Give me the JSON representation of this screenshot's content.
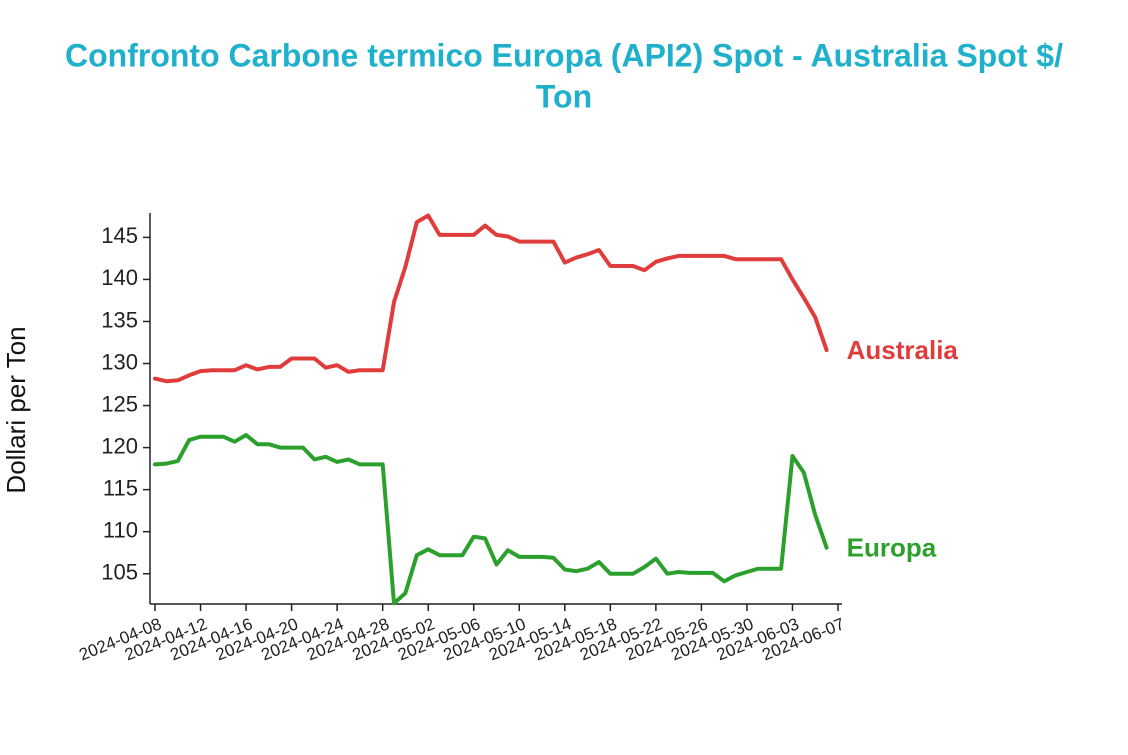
{
  "chart_data": {
    "type": "line",
    "title": "Confronto Carbone termico Europa (API2) Spot - Australia Spot $/ Ton",
    "title_lines": [
      "Confronto Carbone termico Europa (API2) Spot - Australia Spot $/",
      "Ton"
    ],
    "ylabel": "Dollari per Ton",
    "x": [
      "2024-04-08",
      "2024-04-09",
      "2024-04-10",
      "2024-04-11",
      "2024-04-12",
      "2024-04-13",
      "2024-04-14",
      "2024-04-15",
      "2024-04-16",
      "2024-04-17",
      "2024-04-18",
      "2024-04-19",
      "2024-04-20",
      "2024-04-21",
      "2024-04-22",
      "2024-04-23",
      "2024-04-24",
      "2024-04-25",
      "2024-04-26",
      "2024-04-27",
      "2024-04-28",
      "2024-04-29",
      "2024-04-30",
      "2024-05-01",
      "2024-05-02",
      "2024-05-03",
      "2024-05-04",
      "2024-05-05",
      "2024-05-06",
      "2024-05-07",
      "2024-05-08",
      "2024-05-09",
      "2024-05-10",
      "2024-05-11",
      "2024-05-12",
      "2024-05-13",
      "2024-05-14",
      "2024-05-15",
      "2024-05-16",
      "2024-05-17",
      "2024-05-18",
      "2024-05-19",
      "2024-05-20",
      "2024-05-21",
      "2024-05-22",
      "2024-05-23",
      "2024-05-24",
      "2024-05-25",
      "2024-05-26",
      "2024-05-27",
      "2024-05-28",
      "2024-05-29",
      "2024-05-30",
      "2024-05-31",
      "2024-06-01",
      "2024-06-02",
      "2024-06-03",
      "2024-06-04",
      "2024-06-05",
      "2024-06-06"
    ],
    "series": [
      {
        "name": "Australia",
        "color": "#e03c3c",
        "values": [
          128.2,
          127.9,
          128.0,
          128.6,
          129.1,
          129.2,
          129.2,
          129.2,
          129.8,
          129.3,
          129.6,
          129.6,
          130.6,
          130.6,
          130.6,
          129.5,
          129.8,
          129.0,
          129.2,
          129.2,
          129.2,
          137.3,
          141.5,
          146.8,
          147.6,
          145.3,
          145.3,
          145.3,
          145.3,
          146.4,
          145.3,
          145.1,
          144.5,
          144.5,
          144.5,
          144.5,
          142.0,
          142.6,
          143.0,
          143.5,
          141.6,
          141.6,
          141.6,
          141.1,
          142.1,
          142.5,
          142.8,
          142.8,
          142.8,
          142.8,
          142.8,
          142.4,
          142.4,
          142.4,
          142.4,
          142.4,
          140.0,
          137.8,
          135.5,
          131.6
        ]
      },
      {
        "name": "Europa",
        "color": "#2ca02c",
        "values": [
          118.0,
          118.1,
          118.4,
          120.9,
          121.3,
          121.3,
          121.3,
          120.7,
          121.5,
          120.4,
          120.4,
          120.0,
          120.0,
          120.0,
          118.6,
          118.9,
          118.3,
          118.6,
          118.0,
          118.0,
          118.0,
          101.5,
          102.7,
          107.2,
          107.9,
          107.2,
          107.2,
          107.2,
          109.4,
          109.2,
          106.1,
          107.8,
          107.0,
          107.0,
          107.0,
          106.9,
          105.5,
          105.3,
          105.6,
          106.4,
          105.0,
          105.0,
          105.0,
          105.8,
          106.8,
          105.0,
          105.2,
          105.1,
          105.1,
          105.1,
          104.1,
          104.8,
          105.2,
          105.6,
          105.6,
          105.6,
          119.0,
          117.0,
          112.0,
          108.1
        ]
      }
    ],
    "xlim": [
      "2024-04-08",
      "2024-06-07"
    ],
    "xticks": [
      "2024-04-08",
      "2024-04-12",
      "2024-04-16",
      "2024-04-20",
      "2024-04-24",
      "2024-04-28",
      "2024-05-02",
      "2024-05-06",
      "2024-05-10",
      "2024-05-14",
      "2024-05-18",
      "2024-05-22",
      "2024-05-26",
      "2024-05-30",
      "2024-06-03",
      "2024-06-07"
    ],
    "ylim": [
      101.4,
      147.9
    ],
    "yticks": [
      105,
      110,
      115,
      120,
      125,
      130,
      135,
      140,
      145
    ]
  }
}
